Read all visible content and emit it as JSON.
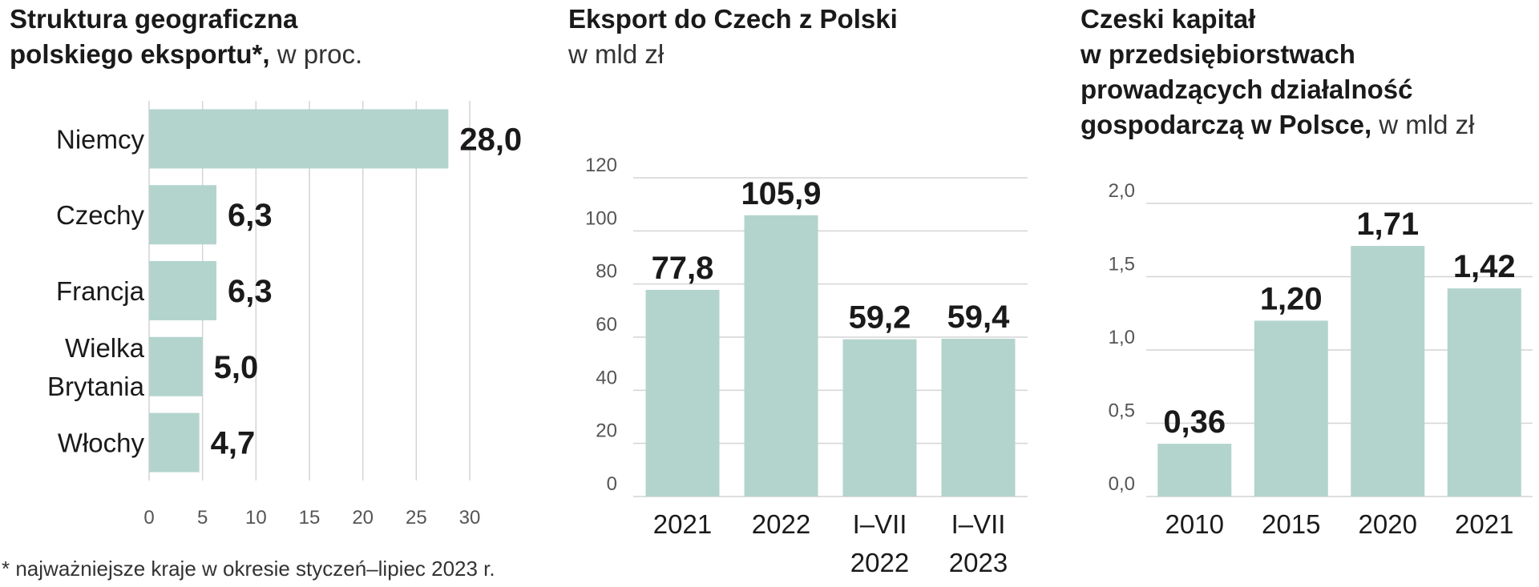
{
  "panels": [
    {
      "title_bold_line1": "Struktura geograficzna",
      "title_bold_line2": "polskiego eksportu*,",
      "title_unit": " w proc."
    },
    {
      "title_bold_line1": "Eksport do Czech z Polski",
      "title_unit": "w mld zł"
    },
    {
      "title_bold_line1": "Czeski kapitał",
      "title_bold_line2": "w przedsiębiorstwach",
      "title_bold_line3": "prowadzących działalność",
      "title_bold_line4": "gospodarczą w Polsce,",
      "title_unit": " w mld zł"
    }
  ],
  "footnote": "* najważniejsze kraje w okresie styczeń–lipiec 2023 r.",
  "colors": {
    "bar": "#b3d4cd",
    "grid": "#d4d4d4",
    "text": "#1a1a1a"
  },
  "chart_data": [
    {
      "type": "bar",
      "orientation": "horizontal",
      "categories": [
        [
          "Niemcy"
        ],
        [
          "Czechy"
        ],
        [
          "Francja"
        ],
        [
          "Wielka",
          "Brytania"
        ],
        [
          "Włochy"
        ]
      ],
      "values": [
        28.0,
        6.3,
        6.3,
        5.0,
        4.7
      ],
      "value_labels": [
        "28,0",
        "6,3",
        "6,3",
        "5,0",
        "4,7"
      ],
      "xlim": [
        0,
        30
      ],
      "xticks": [
        0,
        5,
        10,
        15,
        20,
        25,
        30
      ],
      "xtick_labels": [
        "0",
        "5",
        "10",
        "15",
        "20",
        "25",
        "30"
      ],
      "grid": true
    },
    {
      "type": "bar",
      "orientation": "vertical",
      "categories": [
        [
          "2021"
        ],
        [
          "2022"
        ],
        [
          "I–VII",
          "2022"
        ],
        [
          "I–VII",
          "2023"
        ]
      ],
      "values": [
        77.8,
        105.9,
        59.2,
        59.4
      ],
      "value_labels": [
        "77,8",
        "105,9",
        "59,2",
        "59,4"
      ],
      "ylim": [
        0,
        120
      ],
      "yticks": [
        0,
        20,
        40,
        60,
        80,
        100,
        120
      ],
      "ytick_labels": [
        "0",
        "20",
        "40",
        "60",
        "80",
        "100",
        "120"
      ],
      "grid": true
    },
    {
      "type": "bar",
      "orientation": "vertical",
      "categories": [
        [
          "2010"
        ],
        [
          "2015"
        ],
        [
          "2020"
        ],
        [
          "2021"
        ]
      ],
      "values": [
        0.36,
        1.2,
        1.71,
        1.42
      ],
      "value_labels": [
        "0,36",
        "1,20",
        "1,71",
        "1,42"
      ],
      "ylim": [
        0,
        2.0
      ],
      "yticks": [
        0,
        0.5,
        1.0,
        1.5,
        2.0
      ],
      "ytick_labels": [
        "0,0",
        "0,5",
        "1,0",
        "1,5",
        "2,0"
      ],
      "grid": true
    }
  ]
}
